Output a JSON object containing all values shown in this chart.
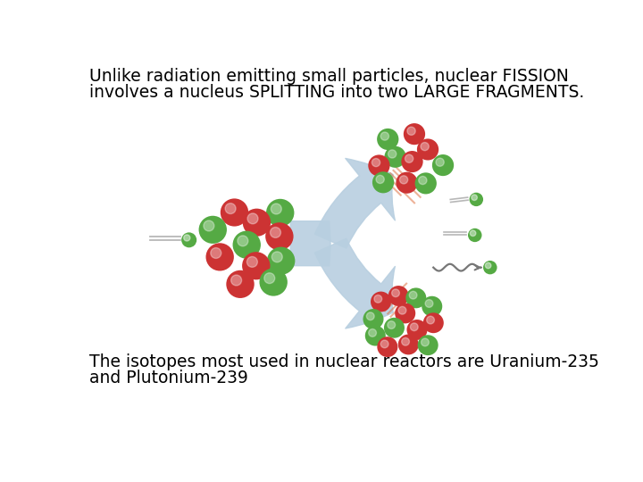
{
  "title_line1": "Unlike radiation emitting small particles, nuclear FISSION",
  "title_line2": "involves a nucleus SPLITTING into two LARGE FRAGMENTS.",
  "bottom_line1": "The isotopes most used in nuclear reactors are Uranium-235",
  "bottom_line2": "and Plutonium-239",
  "bg_color": "#ffffff",
  "text_color": "#000000",
  "font_size_title": 13.5,
  "font_size_bottom": 13.5,
  "nucleus_red": "#cc3333",
  "nucleus_green": "#55aa44",
  "neutron_color": "#55aa44",
  "arrow_color": "#b8cfe0",
  "fire_color": "#dd6633",
  "trail_color": "#999999"
}
